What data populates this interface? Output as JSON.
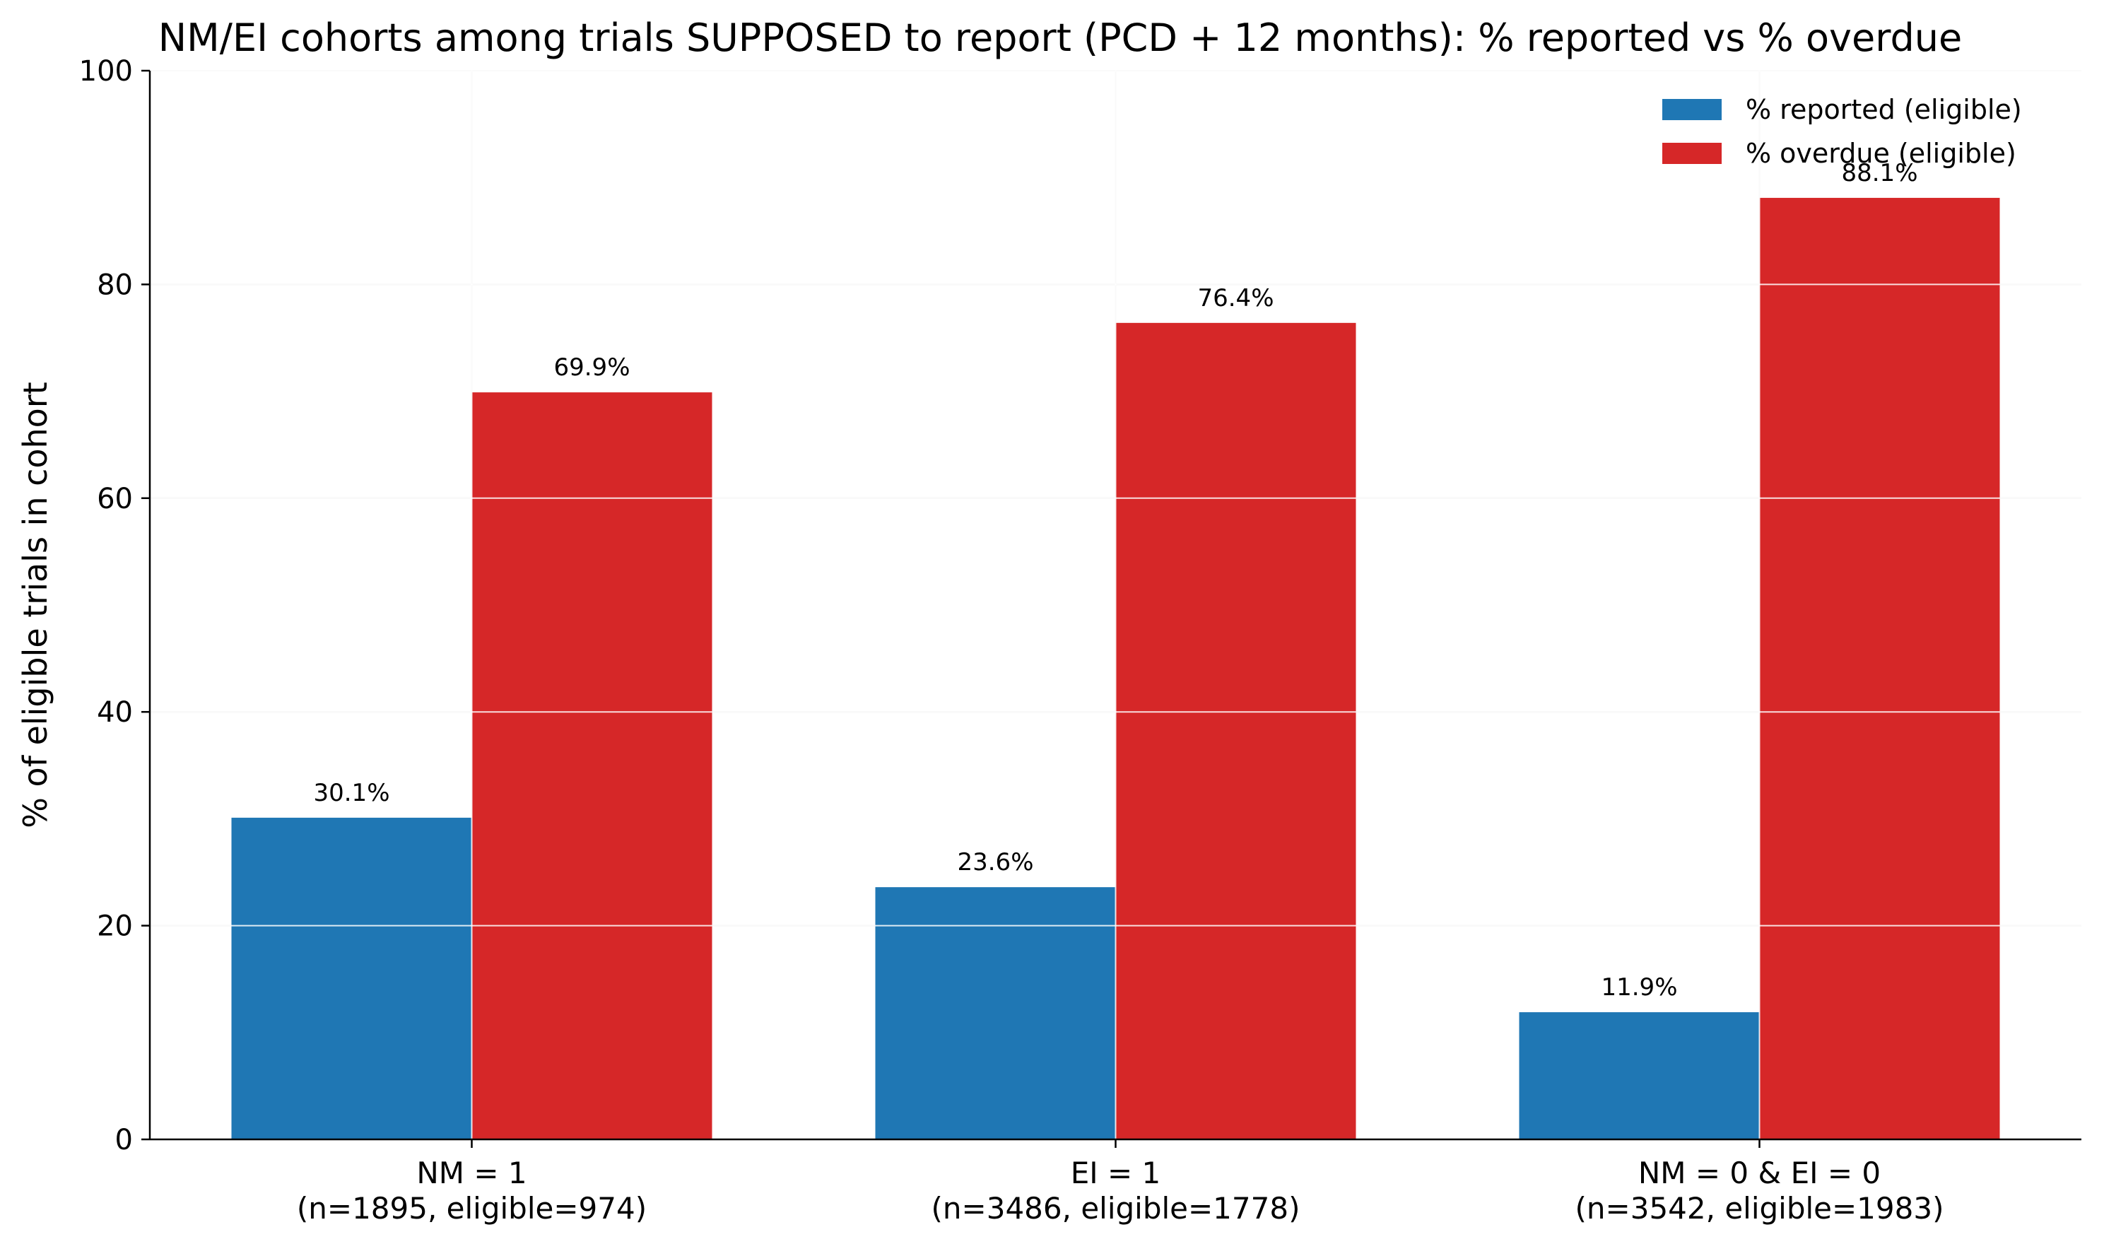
{
  "chart_data": {
    "type": "bar",
    "title": "NM/EI cohorts among trials SUPPOSED to report (PCD + 12 months): % reported vs % overdue",
    "xlabel": "",
    "ylabel": "% of eligible trials in cohort",
    "ylim": [
      0,
      100
    ],
    "yticks": [
      0,
      20,
      40,
      60,
      80,
      100
    ],
    "grid": true,
    "legend_position": "top-right",
    "categories": [
      {
        "line1": "NM = 1",
        "line2": "(n=1895, eligible=974)"
      },
      {
        "line1": "EI = 1",
        "line2": "(n=3486, eligible=1778)"
      },
      {
        "line1": "NM = 0 & EI = 0",
        "line2": "(n=3542, eligible=1983)"
      }
    ],
    "series": [
      {
        "name": "% reported (eligible)",
        "color": "#1f77b4",
        "values": [
          30.1,
          23.6,
          11.9
        ],
        "labels": [
          "30.1%",
          "23.6%",
          "11.9%"
        ]
      },
      {
        "name": "% overdue (eligible)",
        "color": "#d62728",
        "values": [
          69.9,
          76.4,
          88.1
        ],
        "labels": [
          "69.9%",
          "76.4%",
          "88.1%"
        ]
      }
    ]
  }
}
